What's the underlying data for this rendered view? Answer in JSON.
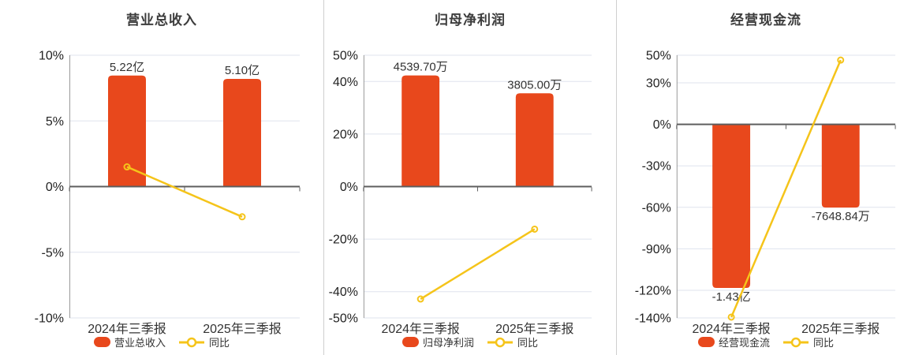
{
  "page_background": "#ffffff",
  "colors": {
    "bar": "#e8481c",
    "line": "#f5c41a",
    "grid": "#dfe3ee",
    "zero_axis": "#5e5e5e",
    "y_axis": "#999999",
    "divider": "#cfcfcf",
    "title": "#3c3c3c",
    "tick_label": "#222222",
    "value_label": "#333333",
    "legend_label": "#333333"
  },
  "chart_data": [
    {
      "type": "bar+line",
      "title": "营业总收入",
      "categories": [
        "2024年三季报",
        "2025年三季报"
      ],
      "bar_series": {
        "name": "营业总收入",
        "value_labels": [
          "5.22亿",
          "5.10亿"
        ],
        "display_values_pct": [
          8.45,
          8.2
        ]
      },
      "line_series": {
        "name": "同比",
        "values_pct": [
          1.5,
          -2.3
        ]
      },
      "yticks_pct": [
        10,
        5,
        0,
        -5,
        -10
      ],
      "ylim_pct": [
        10,
        -10
      ],
      "tick_suffix": "%",
      "grid": true,
      "legend_position": "bottom"
    },
    {
      "type": "bar+line",
      "title": "归母净利润",
      "categories": [
        "2024年三季报",
        "2025年三季报"
      ],
      "bar_series": {
        "name": "归母净利润",
        "value_labels": [
          "4539.70万",
          "3805.00万"
        ],
        "display_values_pct": [
          42.3,
          35.5
        ]
      },
      "line_series": {
        "name": "同比",
        "values_pct": [
          -42.8,
          -16.2
        ]
      },
      "yticks_pct": [
        50,
        40,
        20,
        0,
        -20,
        -40,
        -50
      ],
      "ylim_pct": [
        50,
        -50
      ],
      "tick_suffix": "%",
      "grid": true,
      "legend_position": "bottom"
    },
    {
      "type": "bar+line",
      "title": "经营现金流",
      "categories": [
        "2024年三季报",
        "2025年三季报"
      ],
      "bar_series": {
        "name": "经营现金流",
        "value_labels": [
          "-1.43亿",
          "-7648.84万"
        ],
        "display_values_pct": [
          -118.3,
          -60.2
        ]
      },
      "line_series": {
        "name": "同比",
        "values_pct": [
          -139.4,
          46.5
        ]
      },
      "yticks_pct": [
        50,
        30,
        0,
        -30,
        -60,
        -90,
        -120,
        -140
      ],
      "ylim_pct": [
        50,
        -140
      ],
      "tick_suffix": "%",
      "grid": true,
      "legend_position": "bottom"
    }
  ]
}
